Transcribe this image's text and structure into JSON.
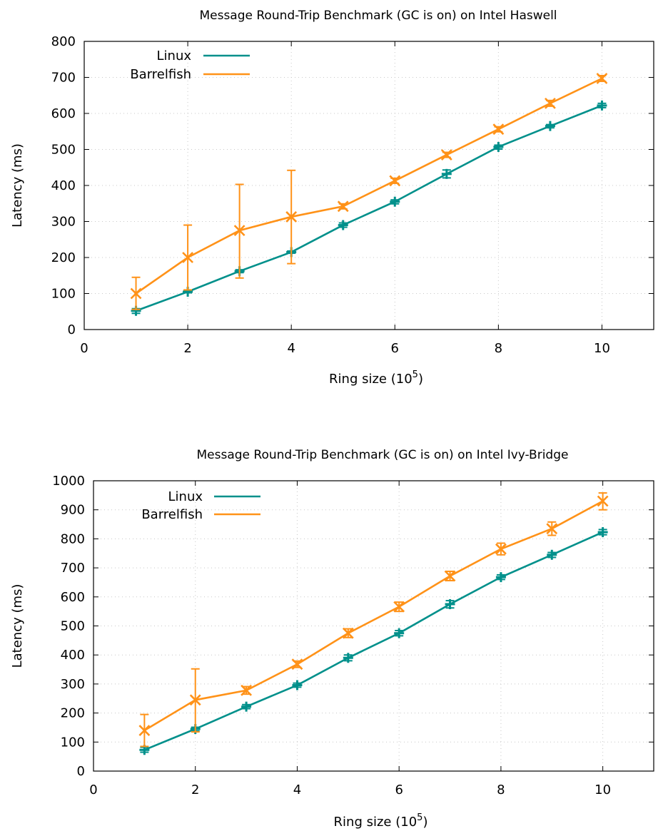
{
  "chart_data": [
    {
      "type": "line",
      "title": "Message Round-Trip Benchmark (GC is on) on Intel Haswell",
      "xlabel": "Ring size (10",
      "xlabel_sup": "5",
      "xlabel_close": ")",
      "ylabel": "Latency (ms)",
      "xlim": [
        0,
        11
      ],
      "ylim": [
        0,
        800
      ],
      "xticks": [
        "0",
        "2",
        "4",
        "6",
        "8",
        "10"
      ],
      "yticks": [
        "0",
        "100",
        "200",
        "300",
        "400",
        "500",
        "600",
        "700",
        "800"
      ],
      "grid": true,
      "legend_position": "top-left",
      "series": [
        {
          "name": "Linux",
          "color": "#00908b",
          "marker": "plus",
          "x": [
            1,
            2,
            3,
            4,
            5,
            6,
            7,
            8,
            9,
            10
          ],
          "y": [
            52,
            105,
            162,
            215,
            290,
            355,
            432,
            507,
            565,
            622
          ],
          "err_low": [
            45,
            102,
            158,
            212,
            284,
            349,
            421,
            501,
            560,
            616
          ],
          "err_high": [
            58,
            108,
            166,
            218,
            296,
            360,
            443,
            512,
            569,
            628
          ]
        },
        {
          "name": "Barrelfish",
          "color": "#ff9218",
          "marker": "cross",
          "x": [
            1,
            2,
            3,
            4,
            5,
            6,
            7,
            8,
            9,
            10
          ],
          "y": [
            100,
            200,
            275,
            313,
            342,
            413,
            485,
            556,
            628,
            697
          ],
          "err_low": [
            56,
            110,
            143,
            183,
            335,
            406,
            478,
            549,
            620,
            689
          ],
          "err_high": [
            145,
            290,
            403,
            442,
            349,
            420,
            492,
            563,
            636,
            705
          ]
        }
      ]
    },
    {
      "type": "line",
      "title": "Message Round-Trip Benchmark (GC is on) on Intel Ivy-Bridge",
      "xlabel": "Ring size (10",
      "xlabel_sup": "5",
      "xlabel_close": ")",
      "ylabel": "Latency (ms)",
      "xlim": [
        0,
        11
      ],
      "ylim": [
        0,
        1000
      ],
      "xticks": [
        "0",
        "2",
        "4",
        "6",
        "8",
        "10"
      ],
      "yticks": [
        "0",
        "100",
        "200",
        "300",
        "400",
        "500",
        "600",
        "700",
        "800",
        "900",
        "1000"
      ],
      "grid": true,
      "legend_position": "top-left",
      "series": [
        {
          "name": "Linux",
          "color": "#00908b",
          "marker": "plus",
          "x": [
            1,
            2,
            3,
            4,
            5,
            6,
            7,
            8,
            9,
            10
          ],
          "y": [
            73,
            145,
            222,
            296,
            390,
            475,
            575,
            668,
            745,
            823
          ],
          "err_low": [
            65,
            138,
            215,
            289,
            380,
            466,
            562,
            660,
            736,
            814
          ],
          "err_high": [
            82,
            151,
            229,
            303,
            400,
            484,
            587,
            676,
            753,
            832
          ]
        },
        {
          "name": "Barrelfish",
          "color": "#ff9218",
          "marker": "cross",
          "x": [
            1,
            2,
            3,
            4,
            5,
            6,
            7,
            8,
            9,
            10
          ],
          "y": [
            140,
            245,
            278,
            368,
            475,
            566,
            672,
            765,
            835,
            930
          ],
          "err_low": [
            85,
            135,
            265,
            357,
            460,
            550,
            656,
            745,
            812,
            900
          ],
          "err_high": [
            195,
            352,
            291,
            379,
            490,
            582,
            688,
            785,
            858,
            958
          ]
        }
      ]
    }
  ]
}
